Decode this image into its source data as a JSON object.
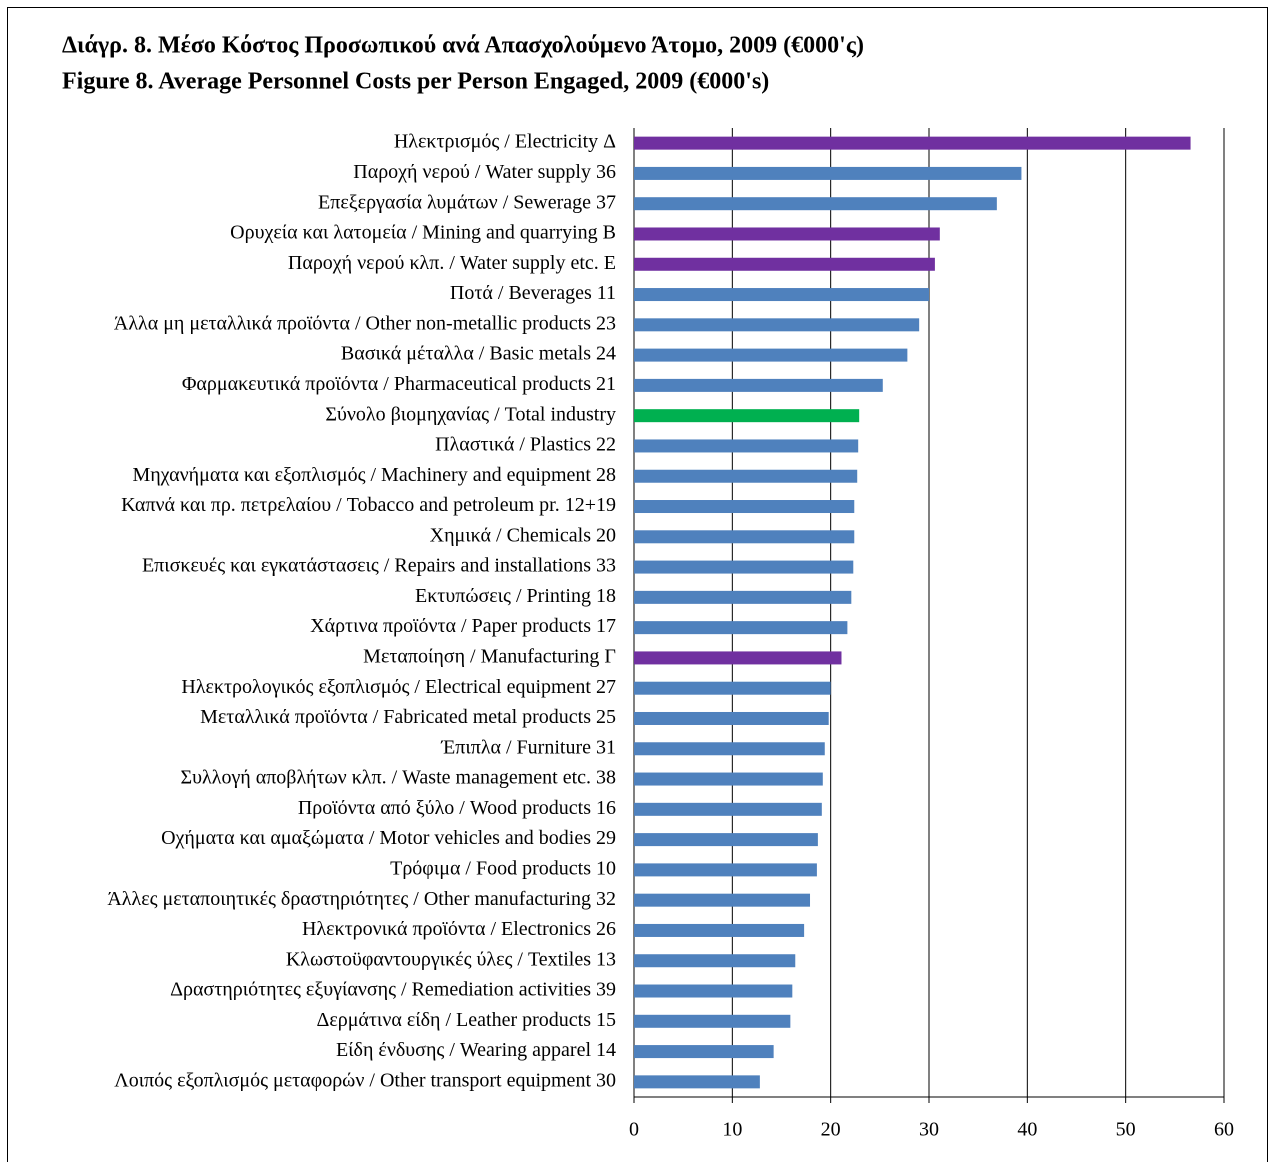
{
  "chart_data": {
    "type": "bar",
    "orientation": "horizontal",
    "title": "Διάγρ. 8. Μέσο Κόστος Προσωπικού ανά Απασχολούμενο Άτομο, 2009 (€000'ς)",
    "subtitle": "Figure 8. Average Personnel Costs per Person Engaged, 2009 (€000's)",
    "categories": [
      "Ηλεκτρισμός / Electricity Δ",
      "Παροχή νερού / Water supply 36",
      "Επεξεργασία λυμάτων / Sewerage 37",
      "Ορυχεία και λατομεία / Mining and quarrying Β",
      "Παροχή νερού κλπ. / Water supply etc. Ε",
      "Ποτά / Beverages 11",
      "Άλλα μη μεταλλικά προϊόντα / Other non-metallic products 23",
      "Βασικά μέταλλα / Basic metals 24",
      "Φαρμακευτικά προϊόντα / Pharmaceutical products 21",
      "Σύνολο βιομηχανίας / Total industry",
      "Πλαστικά / Plastics 22",
      "Μηχανήματα και εξοπλισμός / Machinery and equipment 28",
      "Καπνά και πρ. πετρελαίου / Tobacco and petroleum pr. 12+19",
      "Χημικά / Chemicals 20",
      "Επισκευές και εγκατάστασεις / Repairs and installations 33",
      "Εκτυπώσεις / Printing 18",
      "Χάρτινα προϊόντα / Paper products 17",
      "Μεταποίηση / Manufacturing Γ",
      "Ηλεκτρολογικός εξοπλισμός / Electrical equipment 27",
      "Μεταλλικά προϊόντα / Fabricated metal products 25",
      "Έπιπλα / Furniture 31",
      "Συλλογή αποβλήτων κλπ. / Waste management etc. 38",
      "Προϊόντα από ξύλο / Wood products 16",
      "Οχήματα και αμαξώματα / Motor vehicles and bodies 29",
      "Τρόφιμα / Food products 10",
      "Άλλες μεταποιητικές δραστηριότητες / Other manufacturing 32",
      "Ηλεκτρονικά προϊόντα / Electronics 26",
      "Κλωστοϋφαντουργικές ύλες / Textiles 13",
      "Δραστηριότητες εξυγίανσης / Remediation activities 39",
      "Δερμάτινα είδη / Leather products 15",
      "Είδη ένδυσης / Wearing apparel 14",
      "Λοιπός εξοπλισμός μεταφορών / Other transport equipment 30"
    ],
    "values": [
      56.6,
      39.4,
      36.9,
      31.1,
      30.6,
      30.0,
      29.0,
      27.8,
      25.3,
      22.9,
      22.8,
      22.7,
      22.4,
      22.4,
      22.3,
      22.1,
      21.7,
      21.1,
      20.0,
      19.8,
      19.4,
      19.2,
      19.1,
      18.7,
      18.6,
      17.9,
      17.3,
      16.4,
      16.1,
      15.9,
      14.2,
      12.8
    ],
    "colors": [
      "#7030a0",
      "#4f81bd",
      "#4f81bd",
      "#7030a0",
      "#7030a0",
      "#4f81bd",
      "#4f81bd",
      "#4f81bd",
      "#4f81bd",
      "#00b050",
      "#4f81bd",
      "#4f81bd",
      "#4f81bd",
      "#4f81bd",
      "#4f81bd",
      "#4f81bd",
      "#4f81bd",
      "#7030a0",
      "#4f81bd",
      "#4f81bd",
      "#4f81bd",
      "#4f81bd",
      "#4f81bd",
      "#4f81bd",
      "#4f81bd",
      "#4f81bd",
      "#4f81bd",
      "#4f81bd",
      "#4f81bd",
      "#4f81bd",
      "#4f81bd",
      "#4f81bd"
    ],
    "xlim": [
      0,
      60
    ],
    "xticks": [
      0,
      10,
      20,
      30,
      40,
      50,
      60
    ],
    "grid": true
  }
}
